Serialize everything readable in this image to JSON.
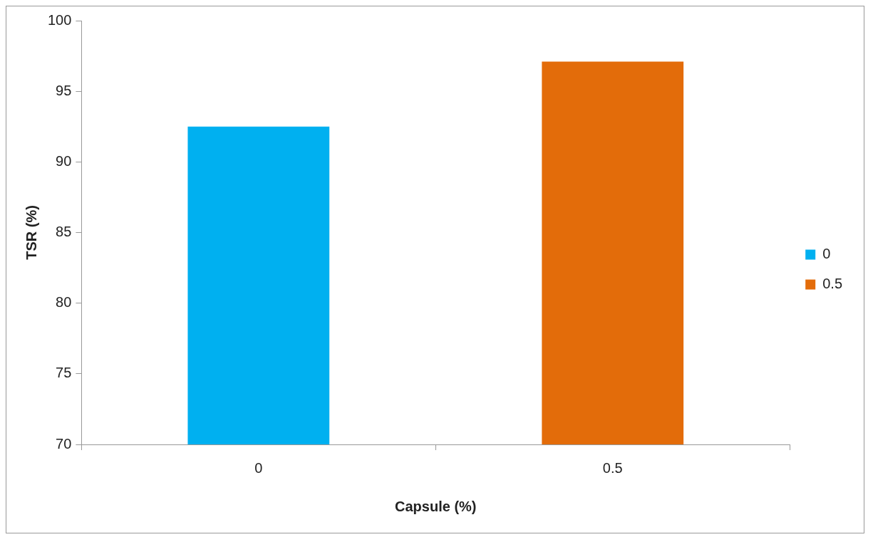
{
  "chart_data": {
    "type": "bar",
    "xlabel": "Capsule (%)",
    "ylabel": "TSR (%)",
    "categories": [
      "0",
      "0.5"
    ],
    "series": [
      {
        "name": "0",
        "color": "#00b0f0",
        "values": [
          92.5,
          null
        ]
      },
      {
        "name": "0.5",
        "color": "#e36c0a",
        "values": [
          null,
          97.1
        ]
      }
    ],
    "ylim": [
      70,
      100
    ],
    "yticks": [
      70,
      75,
      80,
      85,
      90,
      95,
      100
    ],
    "grid": false,
    "legend": "right"
  }
}
